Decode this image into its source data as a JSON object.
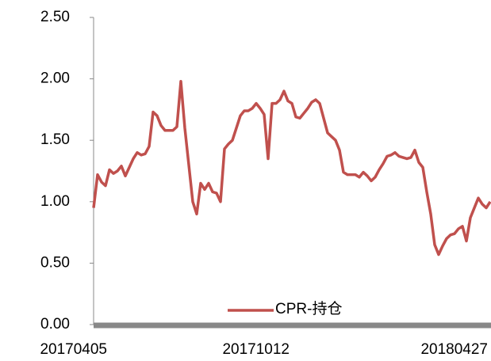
{
  "chart_data": {
    "type": "line",
    "categories": [
      "20170405",
      null,
      null,
      null,
      null,
      null,
      null,
      null,
      null,
      null,
      null,
      null,
      null,
      null,
      null,
      null,
      null,
      null,
      null,
      null,
      null,
      null,
      null,
      null,
      null,
      null,
      null,
      null,
      null,
      null,
      null,
      null,
      null,
      null,
      null,
      null,
      null,
      null,
      null,
      null,
      null,
      null,
      null,
      null,
      null,
      null,
      "20171012",
      null,
      null,
      null,
      null,
      null,
      null,
      null,
      null,
      null,
      null,
      null,
      null,
      null,
      null,
      null,
      null,
      null,
      null,
      null,
      null,
      null,
      null,
      null,
      null,
      null,
      null,
      null,
      null,
      null,
      null,
      null,
      null,
      null,
      null,
      null,
      null,
      null,
      null,
      null,
      null,
      null,
      null,
      null,
      null,
      null,
      null,
      null,
      null,
      null,
      "20180427",
      null,
      null,
      null,
      null
    ],
    "series": [
      {
        "name": "CPR-持仓",
        "color": "#c0504d",
        "values": [
          0.95,
          1.22,
          1.16,
          1.13,
          1.26,
          1.23,
          1.25,
          1.29,
          1.21,
          1.28,
          1.35,
          1.4,
          1.38,
          1.39,
          1.45,
          1.73,
          1.7,
          1.62,
          1.58,
          1.58,
          1.58,
          1.61,
          1.98,
          1.6,
          1.3,
          1.0,
          0.9,
          1.15,
          1.1,
          1.15,
          1.08,
          1.07,
          1.0,
          1.43,
          1.47,
          1.5,
          1.6,
          1.7,
          1.74,
          1.74,
          1.76,
          1.8,
          1.76,
          1.71,
          1.35,
          1.8,
          1.8,
          1.83,
          1.9,
          1.82,
          1.8,
          1.69,
          1.68,
          1.72,
          1.76,
          1.81,
          1.83,
          1.8,
          1.68,
          1.56,
          1.53,
          1.5,
          1.42,
          1.24,
          1.22,
          1.22,
          1.22,
          1.2,
          1.24,
          1.21,
          1.17,
          1.2,
          1.26,
          1.31,
          1.37,
          1.38,
          1.4,
          1.37,
          1.36,
          1.35,
          1.36,
          1.42,
          1.32,
          1.28,
          1.08,
          0.9,
          0.65,
          0.57,
          0.64,
          0.7,
          0.73,
          0.74,
          0.78,
          0.8,
          0.68,
          0.87,
          0.95,
          1.03,
          0.98,
          0.95,
          1.0
        ]
      }
    ],
    "ylim": [
      0,
      2.5
    ],
    "yticks": [
      {
        "value": 0,
        "label": "0.00"
      },
      {
        "value": 0.5,
        "label": "0.50"
      },
      {
        "value": 1,
        "label": "1.00"
      },
      {
        "value": 1.5,
        "label": "1.50"
      },
      {
        "value": 2,
        "label": "2.00"
      },
      {
        "value": 2.5,
        "label": "2.50"
      }
    ],
    "legend": "bottom-center"
  }
}
